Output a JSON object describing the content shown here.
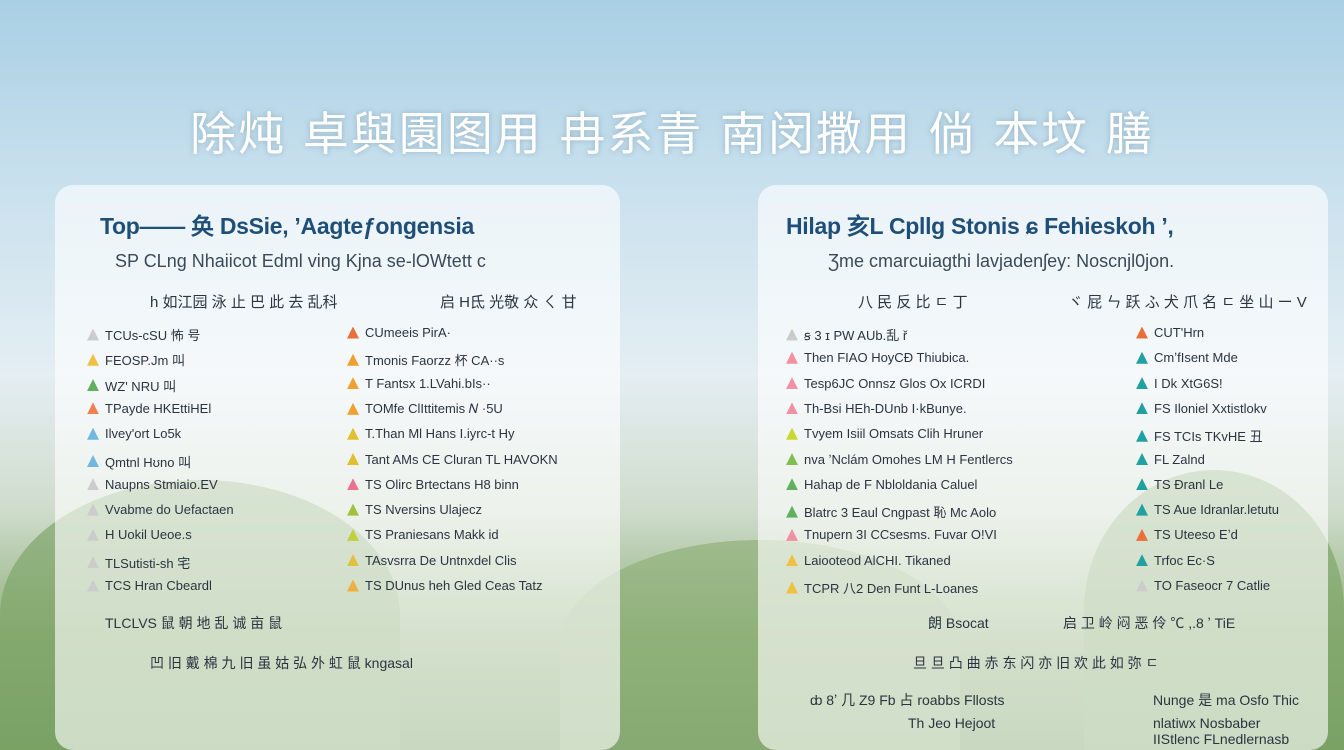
{
  "title": "除炖 卓與園图用 冉系青 南闵撒用 倘 本坟 膳",
  "left_panel": {
    "heading": "Top——  奂 DsSie, ʼAagteƒongensia",
    "subtitle": "SP CLng Nhaiicot Edml ving Kjna se-lOWtett c",
    "subheads": [
      "h 如江园 泳 止 巴 此 去 乱科",
      "启 H氐 光敬 众 ㄑ 甘"
    ],
    "col_left": [
      "TCUs-cSU 怖 号",
      "FEOSP.Jm 叫",
      "WZ' NRU 叫",
      "TPayde HKEttiHEl",
      "Ilvey'ort Lo5k",
      "Qmtnl Hʊno 叫",
      "Naupns Stmiaio.EV",
      "Vvabme do Uefactaen",
      "H Uokil Ueoe.s",
      "TLSutisti-sh 宅",
      "TCS Hran Cbeardl"
    ],
    "col_right": [
      "CUmeeis PirA·",
      "Tmonis Faorzz 杯 CA··s",
      "T Fantsx 1.LVahi.bIs··",
      "TOMfe ClIttitemis 𝑁 ·5U",
      "T.Than Ml Hans I.iyrc-t Hy",
      "Tant AMs CE Cluran TL HAVOKN",
      "TS Olirc Brtectans H8 binn",
      "TS Nversins Ulajecz",
      "TS Praniesans Makk id",
      "TAsvsrra De Untnxdel Clis",
      "TS DUnus heh Gled Ceas Tatz"
    ],
    "col_right_colors": [
      "#e8703a",
      "#f0a030",
      "#f0a030",
      "#f0a030",
      "#e0c030",
      "#e0c030",
      "#ee7090",
      "#a0c040",
      "#c0d040",
      "#e0c040",
      "#f0b040"
    ],
    "col_left_colors": [
      "#cccccc",
      "#f0c040",
      "#60b060",
      "#f08050",
      "#70b8e0",
      "#70b8e0",
      "#cccccc",
      "#cccccc",
      "#cccccc",
      "#cccccc",
      "#cccccc"
    ],
    "footer_1": "TLCLVS 鼠 朝 地 乱 诚 亩 鼠",
    "footer_2": "凹 旧 戴 棉 九 旧 虽 姑 弘 外 虹 鼠 kngasal"
  },
  "right_panel": {
    "heading": "Hilap 亥L Cpllg Stonis ɕ Fehieskoh ʼ,",
    "subtitle": "Ʒme cmarcuiagthi lavjadenʃey: Noscnjl0jon.",
    "subheads": [
      "八 民 反 比 ㄷ 丁",
      "ヾ 屁 ㄣ 跃 ふ 犬 爪 名 ㄷ 坐 山 ー V"
    ],
    "col_left": [
      "ꞩ 3 ɪ   PW AUb.乱 ř",
      "Then FIAO HoyCÐ Thiubica.",
      "Tesp6JC Onnsz Glos Ox ICRDI",
      "Th-Bsi HEh-DUnb I·kBunye.",
      "Tvyem Isiil Omsats Clih Hruner",
      "nva ʼNclám Omohes LM H Fentlercs",
      "Hahap de F Nbloldania Caluel",
      "Blatrc 3 Eaul Cngpast 恥 Mc Aolo",
      "Tnupern 3I CCsesms. Fuvar O!VI",
      "Laiooteod AlCHI. Tikaned",
      "TCPR 八2 Den Funt L-Loanes"
    ],
    "col_left_colors": [
      "#cccccc",
      "#f090a0",
      "#f090a0",
      "#f090a0",
      "#c8d830",
      "#80c050",
      "#60b060",
      "#60b060",
      "#f090a0",
      "#f0c040",
      "#f0c040"
    ],
    "col_right": [
      "CUT'Hrn",
      "CmʼfIsent Mde",
      "I Dk XtG6S!",
      "FS Iloniel Xxtistlokv",
      "FS TCIs TKvHE 丑",
      "FL Zalnd",
      "TS Ðranl Le",
      "TS Aue Idranlar.letutu",
      "TS Uteeso Eʼd",
      "Trfoc Ec·S",
      "TO Faseocr 7 Catlie"
    ],
    "col_right_colors": [
      "#e8703a",
      "#20a0a0",
      "#20a0a0",
      "#20a0a0",
      "#20a0a0",
      "#20a0a0",
      "#20a0a0",
      "#20a0a0",
      "#e8703a",
      "#20a0a0",
      "#cccccc"
    ],
    "footer_1": [
      "朗 Bsocat",
      "启 卫 岭 闷 恶 伶 ℃ ,.8 ʼ TiE"
    ],
    "footer_2": "旦 旦 凸 曲 赤 东 闪 亦 旧 欢 此 如 弥 ㄷ",
    "footer_3": [
      "ȸ 8ʼ 几 Z9 Fb 占 roabbs Fllosts",
      "Nunge 是 ma Osfo Thic"
    ],
    "footer_4": [
      "Th Jeo Hejoot",
      "nlatiwx Nosbaber"
    ],
    "footer_5": "IIStlenc FLnedlernasb"
  }
}
